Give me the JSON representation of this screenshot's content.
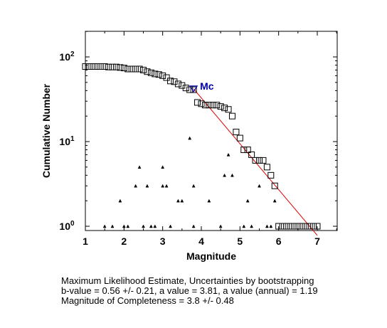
{
  "chart_data": {
    "type": "scatter",
    "xlabel": "Magnitude",
    "ylabel": "Cumulative Number",
    "xlim": [
      1,
      7.5
    ],
    "ylim_log10": [
      -0.1,
      2.3
    ],
    "y_scale": "log",
    "x_ticks": [
      1,
      2,
      3,
      4,
      5,
      6,
      7
    ],
    "y_ticks": [
      {
        "value": 1,
        "base": "10",
        "exp": "0"
      },
      {
        "value": 10,
        "base": "10",
        "exp": "1"
      },
      {
        "value": 100,
        "base": "10",
        "exp": "2"
      }
    ],
    "grid": false,
    "colors": {
      "cumulative": "#000000",
      "fit": "#dd0000",
      "mc": "#0000aa",
      "frame": "#000000"
    },
    "cumulative": {
      "marker": "square",
      "x": [
        1.0,
        1.1,
        1.2,
        1.3,
        1.4,
        1.5,
        1.6,
        1.7,
        1.8,
        1.9,
        2.0,
        2.1,
        2.2,
        2.3,
        2.4,
        2.5,
        2.6,
        2.7,
        2.8,
        2.9,
        3.0,
        3.1,
        3.2,
        3.3,
        3.4,
        3.5,
        3.6,
        3.7,
        3.8,
        3.9,
        4.0,
        4.1,
        4.2,
        4.3,
        4.4,
        4.5,
        4.6,
        4.7,
        4.8,
        4.9,
        5.0,
        5.1,
        5.2,
        5.3,
        5.4,
        5.5,
        5.6,
        5.7,
        5.8,
        5.9,
        6.0,
        6.1,
        6.2,
        6.3,
        6.4,
        6.5,
        6.6,
        6.7,
        6.8,
        6.9,
        7.0
      ],
      "y": [
        77,
        77,
        77,
        77,
        77,
        77,
        76,
        76,
        76,
        75,
        74,
        72,
        72,
        72,
        72,
        70,
        67,
        65,
        63,
        62,
        60,
        57,
        52,
        51,
        48,
        46,
        43,
        41,
        41,
        29,
        28,
        27,
        27,
        27,
        27,
        26,
        25,
        24,
        20,
        13,
        11,
        8,
        8,
        7,
        6,
        6,
        6,
        5,
        4,
        3,
        1,
        1,
        1,
        1,
        1,
        1,
        1,
        1,
        1,
        1,
        1
      ]
    },
    "noncumulative": {
      "marker": "triangle",
      "x": [
        1.5,
        1.7,
        1.9,
        2.0,
        2.1,
        2.3,
        2.4,
        2.5,
        2.6,
        2.7,
        2.8,
        3.0,
        3.0,
        3.1,
        3.2,
        3.4,
        3.5,
        3.7,
        3.8,
        3.8,
        4.2,
        4.5,
        4.6,
        4.7,
        4.8,
        5.1,
        5.2,
        5.3,
        5.5,
        5.7,
        5.8,
        5.9
      ],
      "y": [
        1,
        1,
        2,
        1,
        1,
        3,
        5,
        1,
        3,
        1,
        1,
        3,
        5,
        3,
        1,
        2,
        2,
        11,
        3,
        1,
        2,
        1,
        4,
        7,
        4,
        1,
        2,
        1,
        3,
        1,
        1,
        2
      ]
    },
    "fit_line": {
      "x": [
        3.8,
        7.0
      ],
      "y": [
        42,
        0.78
      ]
    },
    "mc_marker": {
      "x": 3.8,
      "y": 42,
      "label": "Mc"
    },
    "caption": {
      "line1": "Maximum Likelihood Estimate, Uncertainties by bootstrapping",
      "line2": "b-value = 0.56 +/- 0.21,  a value = 3.81,   a value (annual) = 1.19",
      "line3": "Magnitude of Completeness = 3.8 +/- 0.48"
    }
  }
}
